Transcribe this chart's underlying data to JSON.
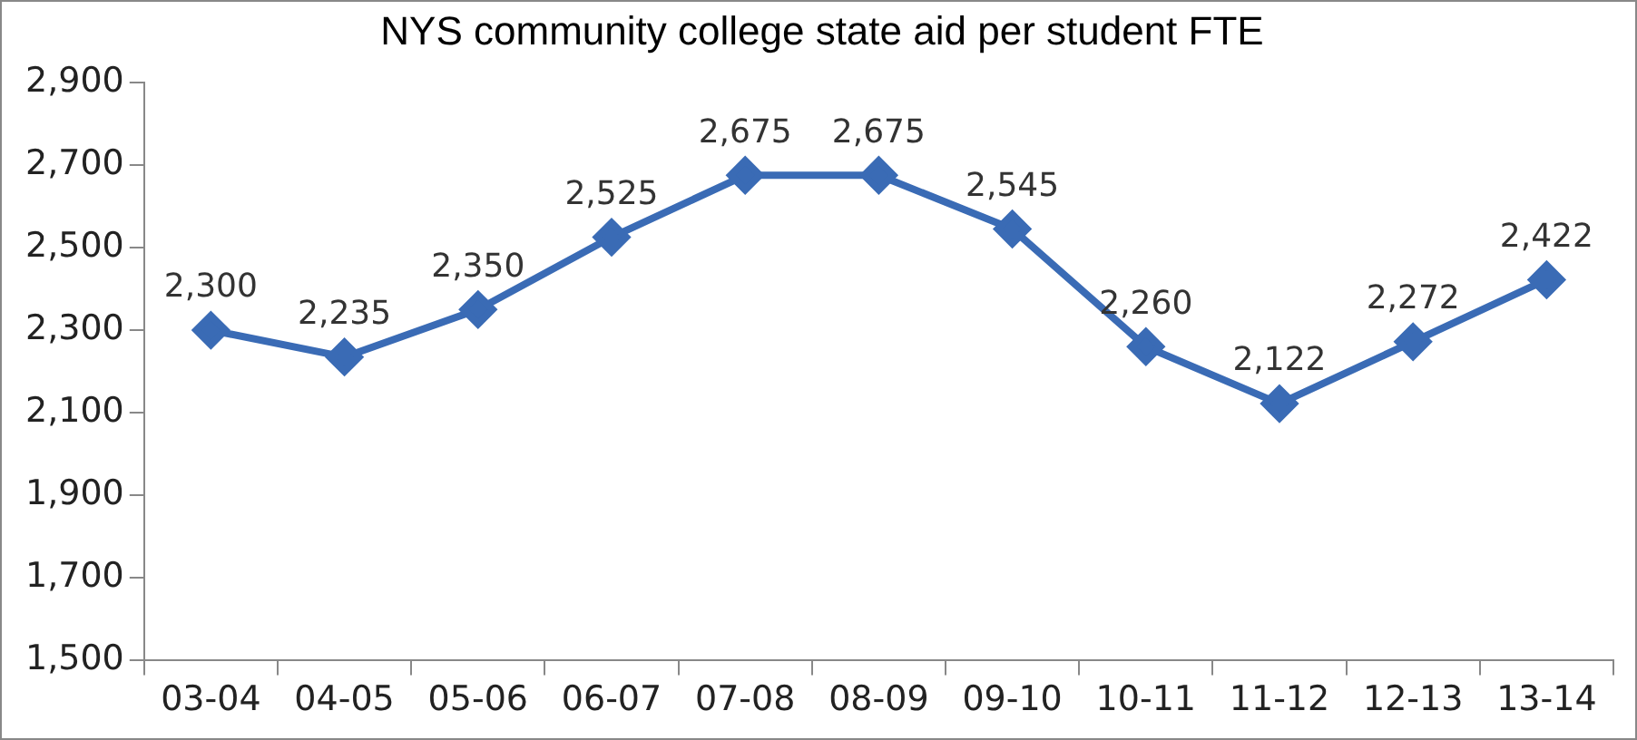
{
  "chart_data": {
    "type": "line",
    "title": "NYS community college state aid per student FTE",
    "categories": [
      "03-04",
      "04-05",
      "05-06",
      "06-07",
      "07-08",
      "08-09",
      "09-10",
      "10-11",
      "11-12",
      "12-13",
      "13-14"
    ],
    "series": [
      {
        "color": "#3a6bb5",
        "values": [
          2300,
          2235,
          2350,
          2525,
          2675,
          2675,
          2545,
          2260,
          2122,
          2272,
          2422
        ],
        "value_labels": [
          "2,300",
          "2,235",
          "2,350",
          "2,525",
          "2,675",
          "2,675",
          "2,545",
          "2,260",
          "2,122",
          "2,272",
          "2,422"
        ]
      }
    ],
    "ylim": [
      1500,
      2900
    ],
    "yticks": [
      {
        "value": 1500,
        "label": "1,500"
      },
      {
        "value": 1700,
        "label": "1,700"
      },
      {
        "value": 1900,
        "label": "1,900"
      },
      {
        "value": 2100,
        "label": "2,100"
      },
      {
        "value": 2300,
        "label": "2,300"
      },
      {
        "value": 2500,
        "label": "2,500"
      },
      {
        "value": 2700,
        "label": "2,700"
      },
      {
        "value": 2900,
        "label": "2,900"
      }
    ],
    "grid": false,
    "legend": false,
    "marker": "diamond",
    "line_style": "solid"
  }
}
